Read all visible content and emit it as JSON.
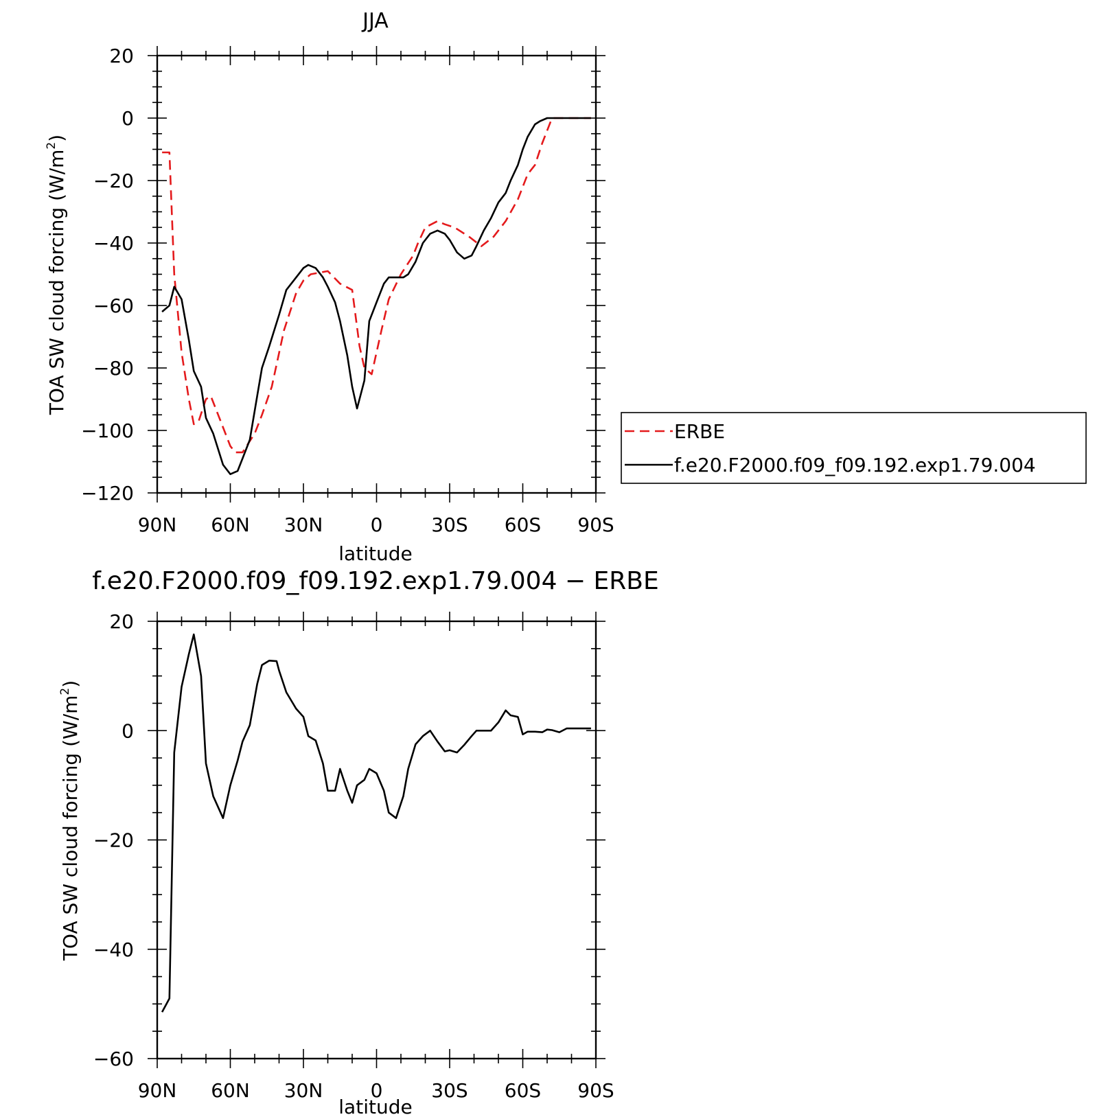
{
  "chart_data": [
    {
      "type": "line",
      "title": "JJA",
      "xlabel": "latitude",
      "ylabel": "TOA SW cloud forcing (W/m",
      "ylabel_sup": "2",
      "ylabel_tail": ")",
      "xlim": [
        90,
        -90
      ],
      "ylim": [
        -120,
        20
      ],
      "x_ticks": [
        90,
        60,
        30,
        0,
        -30,
        -60,
        -90
      ],
      "x_tick_labels": [
        "90N",
        "60N",
        "30N",
        "0",
        "30S",
        "60S",
        "90S"
      ],
      "y_ticks": [
        20,
        0,
        -20,
        -40,
        -60,
        -80,
        -100,
        -120
      ],
      "y_tick_labels": [
        "20",
        "0",
        "−20",
        "−40",
        "−60",
        "−80",
        "−100",
        "−120"
      ],
      "grid": false,
      "legend_position": "right",
      "series": [
        {
          "name": "ERBE",
          "color": "#e41a1c",
          "dash": true,
          "x": [
            88,
            85,
            83,
            80,
            77,
            75,
            73,
            70,
            68,
            65,
            60,
            58,
            55,
            50,
            47,
            43,
            38,
            33,
            30,
            27,
            20,
            15,
            10,
            7,
            5,
            2,
            -2,
            -5,
            -10,
            -15,
            -17,
            -20,
            -25,
            -28,
            -32,
            -38,
            -43,
            -48,
            -53,
            -58,
            -62,
            -65,
            -68,
            -72,
            -76,
            -80,
            -85,
            -88
          ],
          "y": [
            -11,
            -11,
            -50,
            -75,
            -90,
            -98,
            -97,
            -90,
            -89,
            -95,
            -105,
            -107,
            -107,
            -101,
            -95,
            -86,
            -68,
            -56,
            -52,
            -50,
            -49,
            -53,
            -55,
            -73,
            -80,
            -82,
            -68,
            -58,
            -50,
            -44,
            -40,
            -35,
            -33,
            -34,
            -35,
            -38,
            -41,
            -38,
            -33,
            -26,
            -18,
            -15,
            -8,
            0,
            0,
            0,
            0,
            0
          ]
        },
        {
          "name": "f.e20.F2000.f09_f09.192.exp1.79.004",
          "color": "#000000",
          "dash": false,
          "x": [
            88,
            85,
            83,
            80,
            77,
            75,
            72,
            70,
            67,
            63,
            60,
            57,
            55,
            52,
            49,
            47,
            44,
            40,
            37,
            33,
            30,
            28,
            25,
            22,
            20,
            17,
            15,
            12,
            10,
            8,
            5,
            3,
            0,
            -3,
            -5,
            -8,
            -11,
            -13,
            -16,
            -19,
            -22,
            -25,
            -28,
            -30,
            -33,
            -36,
            -39,
            -41,
            -44,
            -47,
            -50,
            -53,
            -55,
            -58,
            -60,
            -62,
            -65,
            -67,
            -70,
            -72,
            -75,
            -80,
            -85,
            -88
          ],
          "y": [
            -62,
            -60,
            -54,
            -58,
            -71,
            -81,
            -86,
            -96,
            -101,
            -111,
            -114,
            -113,
            -109,
            -103,
            -89,
            -80,
            -73,
            -63,
            -55,
            -51,
            -48,
            -47,
            -48,
            -51,
            -54,
            -59,
            -65,
            -76,
            -86,
            -93,
            -84,
            -65,
            -59,
            -53,
            -51,
            -51,
            -51,
            -50,
            -46,
            -40,
            -37,
            -36,
            -37,
            -39,
            -43,
            -45,
            -44,
            -41,
            -36,
            -32,
            -27,
            -24,
            -20,
            -15,
            -10,
            -6,
            -2,
            -1,
            0,
            0,
            0,
            0,
            0,
            0
          ]
        }
      ]
    },
    {
      "type": "line",
      "title": "f.e20.F2000.f09_f09.192.exp1.79.004 − ERBE",
      "xlabel": "latitude",
      "ylabel": "TOA SW cloud forcing (W/m",
      "ylabel_sup": "2",
      "ylabel_tail": ")",
      "xlim": [
        90,
        -90
      ],
      "ylim": [
        -60,
        20
      ],
      "x_ticks": [
        90,
        60,
        30,
        0,
        -30,
        -60,
        -90
      ],
      "x_tick_labels": [
        "90N",
        "60N",
        "30N",
        "0",
        "30S",
        "60S",
        "90S"
      ],
      "y_ticks": [
        20,
        0,
        -20,
        -40,
        -60
      ],
      "y_tick_labels": [
        "20",
        "0",
        "−20",
        "−40",
        "−60"
      ],
      "grid": false,
      "series": [
        {
          "color": "#000000",
          "dash": false,
          "x": [
            88,
            85,
            83,
            80,
            77,
            75,
            72,
            70,
            67,
            63,
            60,
            57,
            55,
            52,
            49,
            47,
            44,
            41,
            40,
            37,
            35,
            33,
            30,
            28,
            25,
            22,
            20,
            17,
            15,
            12,
            10,
            8,
            5,
            3,
            0,
            -3,
            -5,
            -8,
            -11,
            -13,
            -16,
            -19,
            -22,
            -25,
            -28,
            -30,
            -33,
            -36,
            -39,
            -41,
            -44,
            -47,
            -50,
            -53,
            -55,
            -58,
            -60,
            -62,
            -65,
            -68,
            -70,
            -72,
            -75,
            -78,
            -80,
            -83,
            -85,
            -88
          ],
          "y": [
            -51.5,
            -49,
            -4,
            8,
            14,
            17.6,
            10,
            -6,
            -12,
            -16,
            -10,
            -5.5,
            -2,
            1,
            8.5,
            12,
            12.8,
            12.7,
            11,
            7,
            5.5,
            4,
            2.5,
            -1,
            -1.8,
            -6,
            -11,
            -11,
            -7,
            -11,
            -13.2,
            -10,
            -9,
            -7,
            -7.8,
            -11,
            -15,
            -16,
            -12,
            -7,
            -2.5,
            -1,
            0,
            -2,
            -3.8,
            -3.6,
            -4,
            -2.6,
            -1,
            0,
            0,
            0,
            1.5,
            3.7,
            2.8,
            2.5,
            -0.7,
            -0.2,
            -0.2,
            -0.3,
            0.2,
            0.1,
            -0.3,
            0.4,
            0.4,
            0.4,
            0.4,
            0.4
          ]
        }
      ]
    }
  ]
}
